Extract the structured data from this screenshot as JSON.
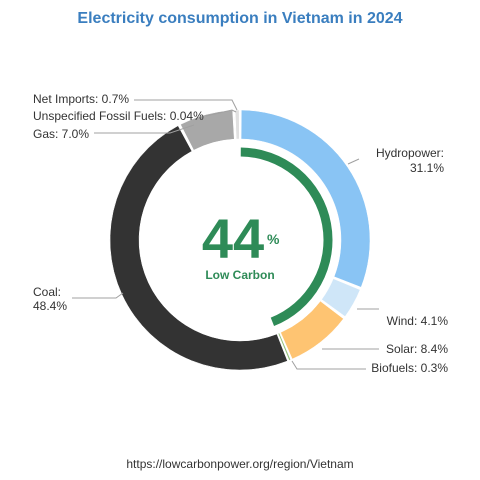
{
  "chart_data": {
    "type": "pie",
    "title": "Electricity consumption in Vietnam in 2024",
    "categories": [
      "Hydropower",
      "Wind",
      "Solar",
      "Biofuels",
      "Coal",
      "Gas",
      "Unspecified Fossil Fuels",
      "Net Imports"
    ],
    "values": [
      31.1,
      4.1,
      8.4,
      0.3,
      48.4,
      7.0,
      0.04,
      0.7
    ],
    "labels": [
      "Hydropower:",
      "Wind: 4.1%",
      "Solar: 8.4%",
      "Biofuels: 0.3%",
      "Coal:",
      "Gas: 7.0%",
      "Unspecified Fossil Fuels: 0.04%",
      "Net Imports: 0.7%"
    ],
    "label_values": [
      "31.1%",
      "",
      "",
      "",
      "48.4%",
      "",
      "",
      ""
    ],
    "colors": [
      "#89c4f4",
      "#cfe6f8",
      "#fec472",
      "#94c27a",
      "#333333",
      "#a8a8a8",
      "#9e9e9e",
      "#e0e0e0"
    ],
    "low_carbon": {
      "value": 44,
      "number_text": "44",
      "unit": "%",
      "label": "Low Carbon",
      "color": "#2e8b57"
    }
  },
  "footer": {
    "source": "https://lowcarbonpower.org/region/Vietnam"
  }
}
